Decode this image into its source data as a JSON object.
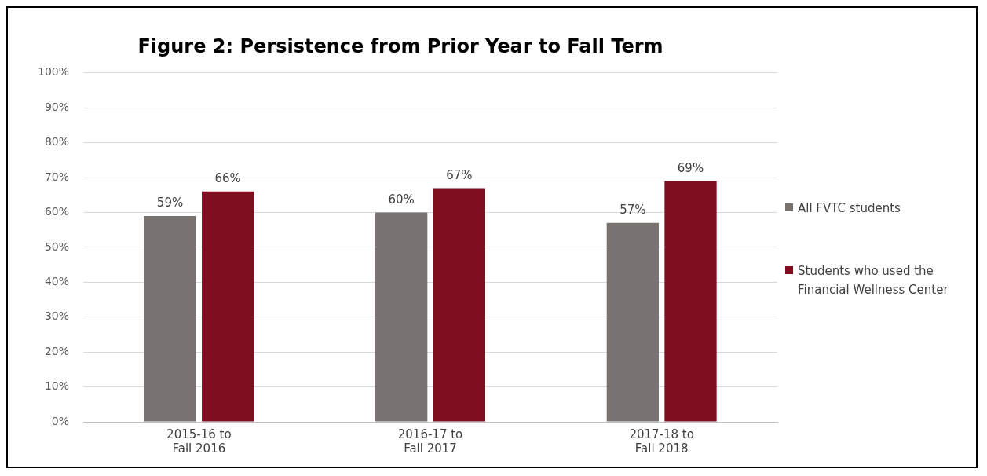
{
  "chart_data": {
    "type": "bar",
    "title": "Figure 2: Persistence from Prior Year to Fall Term",
    "categories": [
      "2015-16 to Fall 2016",
      "2016-17 to Fall 2017",
      "2017-18 to Fall 2018"
    ],
    "series": [
      {
        "name": "All FVTC students",
        "color": "#787371",
        "values": [
          59,
          60,
          57
        ]
      },
      {
        "name": "Students who used the Financial Wellness Center",
        "color": "#7f0e20",
        "values": [
          66,
          67,
          69
        ]
      }
    ],
    "ylim": [
      0,
      100
    ],
    "yticks": [
      {
        "value": 0,
        "label": "0%"
      },
      {
        "value": 10,
        "label": "10%"
      },
      {
        "value": 20,
        "label": "20%"
      },
      {
        "value": 30,
        "label": "30%"
      },
      {
        "value": 40,
        "label": "40%"
      },
      {
        "value": 50,
        "label": "50%"
      },
      {
        "value": 60,
        "label": "60%"
      },
      {
        "value": 70,
        "label": "70%"
      },
      {
        "value": 80,
        "label": "80%"
      },
      {
        "value": 90,
        "label": "90%"
      },
      {
        "value": 100,
        "label": "100%"
      }
    ],
    "value_labels": [
      [
        "59%",
        "60%",
        "57%"
      ],
      [
        "66%",
        "67%",
        "69%"
      ]
    ],
    "grid": "y",
    "legend": "right"
  }
}
